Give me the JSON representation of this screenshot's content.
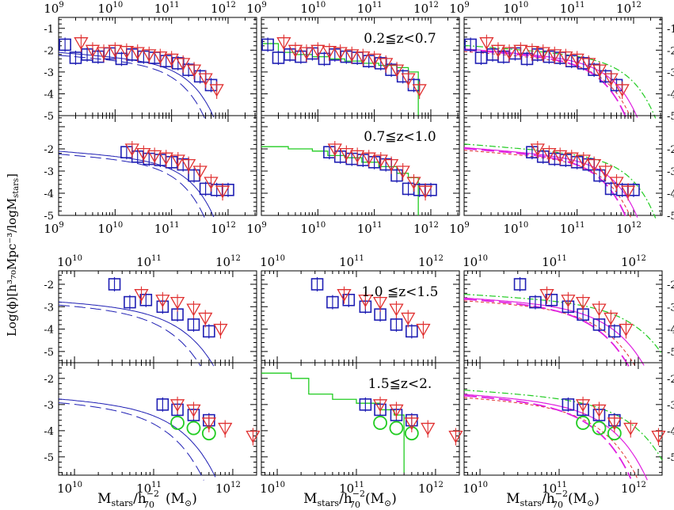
{
  "figure": {
    "ylabel": "Log(ϕ)[h³₇₀Mpc⁻³/logM",
    "ylabel_sub": "stars",
    "ylabel_end": "]",
    "xlabel_main": "M",
    "xlabel_sub1": "stars",
    "xlabel_mid": "/h",
    "xlabel_sup": "−2",
    "xlabel_sub2": "70",
    "xlabel_unit": "(M",
    "xlabel_unit_sub": "⊙",
    "xlabel_unit_end": ")"
  },
  "chart_data": [
    {
      "type": "scatter",
      "title": "0.2≦z<0.7",
      "redshift_bin": "0.2≦z<0.7",
      "xscale": "log",
      "xlim": [
        1000000000.0,
        3200000000000.0
      ],
      "ylim": [
        -5,
        -0.5
      ],
      "x_ticks": [
        "10⁹",
        "10¹⁰",
        "10¹¹",
        "10¹²"
      ],
      "y_ticks": [
        "-1",
        "-2",
        "-3",
        "-4",
        "-5"
      ],
      "series": [
        {
          "marker": "square",
          "color": "#1f1fb4",
          "x": [
            1300000000.0,
            2000000000.0,
            3200000000.0,
            5000000000.0,
            8000000000.0,
            13000000000.0,
            20000000000.0,
            32000000000.0,
            50000000000.0,
            80000000000.0,
            130000000000.0,
            200000000000.0,
            320000000000.0,
            500000000000.0
          ],
          "y": [
            -1.75,
            -2.35,
            -2.2,
            -2.3,
            -2.15,
            -2.4,
            -2.2,
            -2.3,
            -2.35,
            -2.5,
            -2.6,
            -2.9,
            -3.2,
            -3.6
          ]
        },
        {
          "marker": "triangle-down",
          "color": "#e03030",
          "x": [
            2500000000.0,
            4000000000.0,
            6300000000.0,
            10000000000.0,
            16000000000.0,
            25000000000.0,
            40000000000.0,
            63000000000.0,
            100000000000.0,
            160000000000.0,
            250000000000.0,
            400000000000.0,
            630000000000.0
          ],
          "y": [
            -1.65,
            -2.0,
            -2.1,
            -2.0,
            -2.05,
            -2.1,
            -2.2,
            -2.3,
            -2.4,
            -2.6,
            -2.9,
            -3.3,
            -3.8
          ]
        }
      ]
    },
    {
      "type": "scatter",
      "title": "0.7≦z<1.0",
      "redshift_bin": "0.7≦z<1.0",
      "xscale": "log",
      "xlim": [
        1000000000.0,
        3200000000000.0
      ],
      "ylim": [
        -5,
        -0.5
      ],
      "series": [
        {
          "marker": "square",
          "color": "#1f1fb4",
          "x": [
            16000000000.0,
            25000000000.0,
            40000000000.0,
            63000000000.0,
            100000000000.0,
            160000000000.0,
            250000000000.0,
            400000000000.0,
            630000000000.0,
            1000000000000.0
          ],
          "y": [
            -2.15,
            -2.35,
            -2.45,
            -2.5,
            -2.6,
            -2.7,
            -3.2,
            -3.8,
            -3.85,
            -3.85
          ]
        },
        {
          "marker": "triangle-down",
          "color": "#e03030",
          "x": [
            20000000000.0,
            32000000000.0,
            50000000000.0,
            80000000000.0,
            130000000000.0,
            200000000000.0,
            320000000000.0,
            500000000000.0,
            800000000000.0
          ],
          "y": [
            -2.0,
            -2.2,
            -2.3,
            -2.4,
            -2.5,
            -2.7,
            -3.0,
            -3.5,
            -3.9
          ]
        }
      ]
    },
    {
      "type": "scatter",
      "title": "1.0 ≦z<1.5",
      "redshift_bin": "1.0 ≦z<1.5",
      "xscale": "log",
      "xlim": [
        6300000000.0,
        2000000000000.0
      ],
      "ylim": [
        -5.5,
        -1.4
      ],
      "x_ticks": [
        "10¹¹",
        "10¹²"
      ],
      "y_ticks": [
        "-2",
        "-3",
        "-4",
        "-5"
      ],
      "series": [
        {
          "marker": "square",
          "color": "#1f1fb4",
          "x": [
            32000000000.0,
            50000000000.0,
            80000000000.0,
            130000000000.0,
            200000000000.0,
            320000000000.0,
            500000000000.0
          ],
          "y": [
            -2.0,
            -2.8,
            -2.7,
            -3.0,
            -3.35,
            -3.8,
            -4.1
          ]
        },
        {
          "marker": "triangle-down",
          "color": "#e03030",
          "x": [
            70000000000.0,
            130000000000.0,
            200000000000.0,
            320000000000.0,
            450000000000.0,
            700000000000.0
          ],
          "y": [
            -2.45,
            -2.7,
            -2.8,
            -3.1,
            -3.5,
            -4.0
          ]
        }
      ]
    },
    {
      "type": "scatter",
      "title": "1.5≦z<2.",
      "redshift_bin": "1.5≦z<2.",
      "xscale": "log",
      "xlim": [
        6300000000.0,
        2000000000000.0
      ],
      "ylim": [
        -5.7,
        -1.4
      ],
      "series": [
        {
          "marker": "square",
          "color": "#1f1fb4",
          "x": [
            130000000000.0,
            200000000000.0,
            320000000000.0,
            500000000000.0
          ],
          "y": [
            -3.0,
            -3.2,
            -3.4,
            -3.6
          ]
        },
        {
          "marker": "circle",
          "color": "#22cc22",
          "x": [
            200000000000.0,
            320000000000.0,
            500000000000.0
          ],
          "y": [
            -3.7,
            -3.9,
            -4.1
          ]
        },
        {
          "marker": "triangle-down",
          "color": "#e03030",
          "x": [
            200000000000.0,
            320000000000.0,
            500000000000.0,
            800000000000.0,
            1800000000000.0
          ],
          "y": [
            -3.0,
            -3.2,
            -3.7,
            -3.9,
            -4.2
          ]
        }
      ]
    }
  ]
}
